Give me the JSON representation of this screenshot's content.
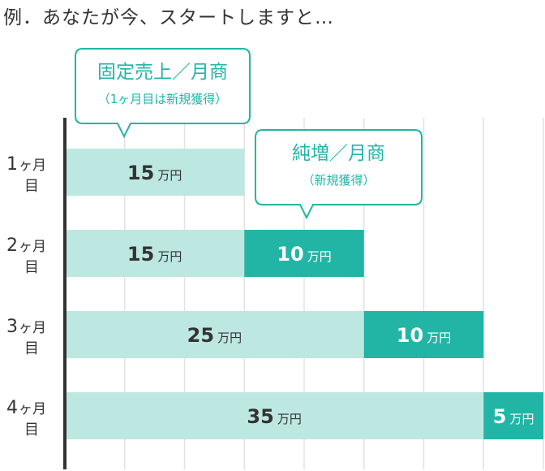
{
  "title": "例．あなたが今、スタートしますと…",
  "chart_data": {
    "type": "bar",
    "stacked": true,
    "orientation": "horizontal",
    "categories": [
      "1ヶ月目",
      "2ヶ月目",
      "3ヶ月目",
      "4ヶ月目"
    ],
    "category_parts": [
      {
        "num": "1",
        "mid": "ヶ月",
        "bottom": "目"
      },
      {
        "num": "2",
        "mid": "ヶ月",
        "bottom": "目"
      },
      {
        "num": "3",
        "mid": "ヶ月",
        "bottom": "目"
      },
      {
        "num": "4",
        "mid": "ヶ月",
        "bottom": "目"
      }
    ],
    "unit": "万円",
    "series": [
      {
        "key": "fixed",
        "values": [
          15,
          15,
          25,
          35
        ],
        "color": "#bde8e1",
        "label_color": "#333333"
      },
      {
        "key": "new",
        "values": [
          0,
          10,
          10,
          5
        ],
        "color": "#22b5a5",
        "label_color": "#ffffff"
      }
    ],
    "xlim": [
      0,
      40
    ],
    "grid": true,
    "callouts": [
      {
        "series": "fixed",
        "title": "固定売上／月商",
        "subtitle": "（1ヶ月目は新規獲得）"
      },
      {
        "series": "new",
        "title": "純増／月商",
        "subtitle": "（新規獲得）"
      }
    ],
    "accent_color": "#22b5a5"
  }
}
